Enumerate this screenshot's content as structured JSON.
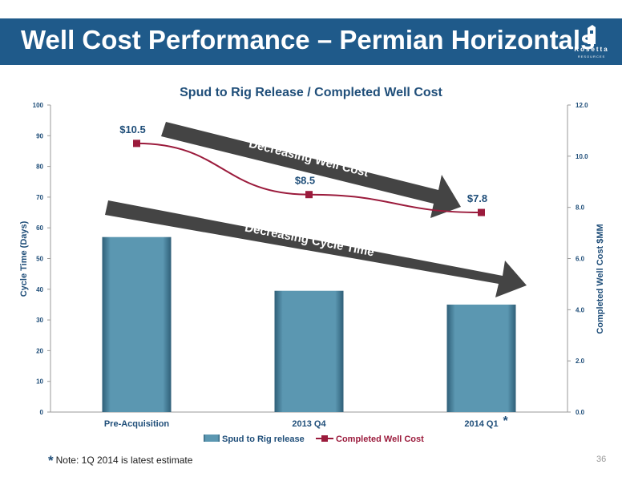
{
  "header": {
    "title": "Well Cost Performance – Permian Horizontals",
    "logo_text": "Rosetta",
    "logo_sub": "RESOURCES",
    "background": "#1f5a8a"
  },
  "chart_data": {
    "type": "bar",
    "title": "Spud to Rig Release / Completed Well Cost",
    "categories": [
      "Pre-Acquisition",
      "2013 Q4",
      "2014 Q1"
    ],
    "category_marks": [
      "",
      "",
      "*"
    ],
    "ylabel": "Cycle Time (Days)",
    "y2label": "Completed Well Cost  $MM",
    "ylim": [
      0,
      100
    ],
    "y2lim": [
      0,
      12
    ],
    "yticks": [
      "0",
      "10",
      "20",
      "30",
      "40",
      "50",
      "60",
      "70",
      "80",
      "90",
      "100"
    ],
    "y2ticks": [
      "0.0",
      "2.0",
      "4.0",
      "6.0",
      "8.0",
      "10.0",
      "12.0"
    ],
    "series": [
      {
        "name": "Spud to Rig release",
        "type": "bar",
        "axis": "left",
        "values": [
          57,
          39.5,
          35
        ],
        "color": "#5b97b1"
      },
      {
        "name": "Completed Well Cost",
        "type": "line",
        "axis": "right",
        "values": [
          10.5,
          8.5,
          7.8
        ],
        "color": "#9b1b3c",
        "labels": [
          "$10.5",
          "$8.5",
          "$7.8"
        ]
      }
    ],
    "annotations": [
      "Decreasing Well Cost",
      "Decreasing Cycle Time"
    ],
    "legend": "bottom",
    "grid": false
  },
  "footnote": {
    "star": "*",
    "text": "Note: 1Q 2014 is latest estimate"
  },
  "page_number": "36"
}
